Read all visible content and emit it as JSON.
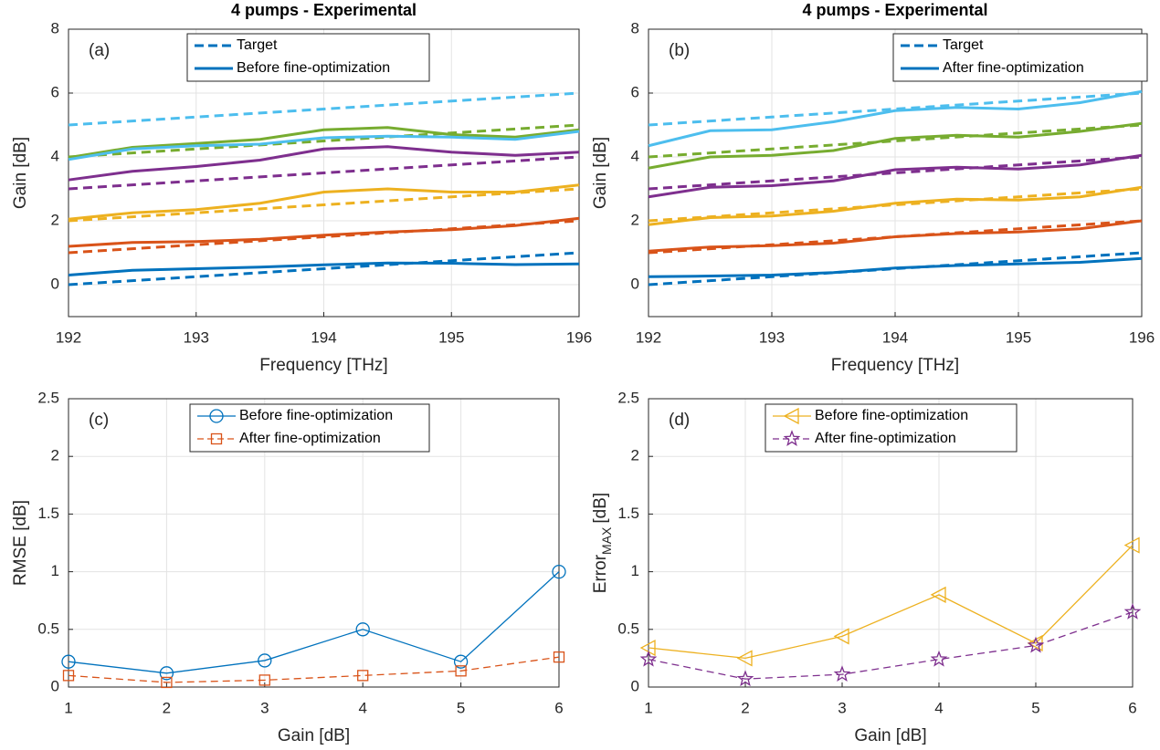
{
  "chart_data": [
    {
      "type": "line",
      "title": "4 pumps - Experimental",
      "annotation": "(a)",
      "xlabel": "Frequency [THz]",
      "ylabel": "Gain [dB]",
      "x": [
        192,
        192.5,
        193,
        193.5,
        194,
        194.5,
        195,
        195.5,
        196
      ],
      "xlim": [
        192,
        196
      ],
      "xticks": [
        192,
        193,
        194,
        195,
        196
      ],
      "ylim": [
        -1,
        8
      ],
      "yticks": [
        0,
        2,
        4,
        6,
        8
      ],
      "grid": true,
      "legend": [
        {
          "label": "Target",
          "dash": true,
          "color": "#0072BD"
        },
        {
          "label": "Before fine-optimization",
          "dash": false,
          "color": "#0072BD"
        }
      ],
      "series": [
        {
          "color": "#0072BD",
          "dash": true,
          "values": [
            0,
            0.125,
            0.25,
            0.375,
            0.5,
            0.625,
            0.75,
            0.875,
            1
          ]
        },
        {
          "color": "#D95319",
          "dash": true,
          "values": [
            1,
            1.125,
            1.25,
            1.375,
            1.5,
            1.625,
            1.75,
            1.875,
            2
          ]
        },
        {
          "color": "#EDB120",
          "dash": true,
          "values": [
            2,
            2.125,
            2.25,
            2.375,
            2.5,
            2.625,
            2.75,
            2.875,
            3
          ]
        },
        {
          "color": "#7E2F8E",
          "dash": true,
          "values": [
            3,
            3.125,
            3.25,
            3.375,
            3.5,
            3.625,
            3.75,
            3.875,
            4
          ]
        },
        {
          "color": "#77AC30",
          "dash": true,
          "values": [
            4,
            4.125,
            4.25,
            4.375,
            4.5,
            4.625,
            4.75,
            4.875,
            5
          ]
        },
        {
          "color": "#4DBEEE",
          "dash": true,
          "values": [
            5,
            5.125,
            5.25,
            5.375,
            5.5,
            5.625,
            5.75,
            5.875,
            6
          ]
        },
        {
          "color": "#0072BD",
          "dash": false,
          "values": [
            0.3,
            0.45,
            0.5,
            0.55,
            0.62,
            0.68,
            0.67,
            0.63,
            0.65
          ]
        },
        {
          "color": "#D95319",
          "dash": false,
          "values": [
            1.2,
            1.32,
            1.35,
            1.42,
            1.55,
            1.65,
            1.72,
            1.85,
            2.08
          ]
        },
        {
          "color": "#EDB120",
          "dash": false,
          "values": [
            2.05,
            2.25,
            2.35,
            2.55,
            2.9,
            3.0,
            2.9,
            2.9,
            3.12
          ]
        },
        {
          "color": "#7E2F8E",
          "dash": false,
          "values": [
            3.28,
            3.55,
            3.7,
            3.9,
            4.25,
            4.32,
            4.15,
            4.05,
            4.15
          ]
        },
        {
          "color": "#77AC30",
          "dash": false,
          "values": [
            3.98,
            4.3,
            4.42,
            4.55,
            4.85,
            4.92,
            4.7,
            4.62,
            4.85
          ]
        },
        {
          "color": "#4DBEEE",
          "dash": false,
          "values": [
            3.92,
            4.25,
            4.35,
            4.4,
            4.6,
            4.65,
            4.62,
            4.55,
            4.8
          ]
        }
      ]
    },
    {
      "type": "line",
      "title": "4 pumps - Experimental",
      "annotation": "(b)",
      "xlabel": "Frequency [THz]",
      "ylabel": "Gain [dB]",
      "x": [
        192,
        192.5,
        193,
        193.5,
        194,
        194.5,
        195,
        195.5,
        196
      ],
      "xlim": [
        192,
        196
      ],
      "xticks": [
        192,
        193,
        194,
        195,
        196
      ],
      "ylim": [
        -1,
        8
      ],
      "yticks": [
        0,
        2,
        4,
        6,
        8
      ],
      "grid": true,
      "legend": [
        {
          "label": "Target",
          "dash": true,
          "color": "#0072BD"
        },
        {
          "label": "After fine-optimization",
          "dash": false,
          "color": "#0072BD"
        }
      ],
      "series": [
        {
          "color": "#0072BD",
          "dash": true,
          "values": [
            0,
            0.125,
            0.25,
            0.375,
            0.5,
            0.625,
            0.75,
            0.875,
            1
          ]
        },
        {
          "color": "#D95319",
          "dash": true,
          "values": [
            1,
            1.125,
            1.25,
            1.375,
            1.5,
            1.625,
            1.75,
            1.875,
            2
          ]
        },
        {
          "color": "#EDB120",
          "dash": true,
          "values": [
            2,
            2.125,
            2.25,
            2.375,
            2.5,
            2.625,
            2.75,
            2.875,
            3
          ]
        },
        {
          "color": "#7E2F8E",
          "dash": true,
          "values": [
            3,
            3.125,
            3.25,
            3.375,
            3.5,
            3.625,
            3.75,
            3.875,
            4
          ]
        },
        {
          "color": "#77AC30",
          "dash": true,
          "values": [
            4,
            4.125,
            4.25,
            4.375,
            4.5,
            4.625,
            4.75,
            4.875,
            5
          ]
        },
        {
          "color": "#4DBEEE",
          "dash": true,
          "values": [
            5,
            5.125,
            5.25,
            5.375,
            5.5,
            5.625,
            5.75,
            5.875,
            6
          ]
        },
        {
          "color": "#0072BD",
          "dash": false,
          "values": [
            0.25,
            0.27,
            0.3,
            0.38,
            0.52,
            0.6,
            0.65,
            0.7,
            0.82
          ]
        },
        {
          "color": "#D95319",
          "dash": false,
          "values": [
            1.05,
            1.18,
            1.22,
            1.3,
            1.5,
            1.6,
            1.65,
            1.75,
            2.0
          ]
        },
        {
          "color": "#EDB120",
          "dash": false,
          "values": [
            1.88,
            2.1,
            2.15,
            2.3,
            2.55,
            2.68,
            2.65,
            2.75,
            3.05
          ]
        },
        {
          "color": "#7E2F8E",
          "dash": false,
          "values": [
            2.75,
            3.05,
            3.1,
            3.25,
            3.6,
            3.68,
            3.62,
            3.75,
            4.05
          ]
        },
        {
          "color": "#77AC30",
          "dash": false,
          "values": [
            3.65,
            4.0,
            4.05,
            4.2,
            4.58,
            4.68,
            4.62,
            4.8,
            5.05
          ]
        },
        {
          "color": "#4DBEEE",
          "dash": false,
          "values": [
            4.35,
            4.82,
            4.85,
            5.1,
            5.45,
            5.55,
            5.5,
            5.7,
            6.05
          ]
        }
      ]
    },
    {
      "type": "line",
      "annotation": "(c)",
      "xlabel": "Gain [dB]",
      "ylabel": "RMSE [dB]",
      "x": [
        1,
        2,
        3,
        4,
        5,
        6
      ],
      "xlim": [
        1,
        6
      ],
      "xticks": [
        1,
        2,
        3,
        4,
        5,
        6
      ],
      "ylim": [
        0,
        2.5
      ],
      "yticks": [
        0,
        0.5,
        1,
        1.5,
        2,
        2.5
      ],
      "grid": true,
      "series": [
        {
          "name": "Before fine-optimization",
          "color": "#0072BD",
          "dash": false,
          "marker": "circle",
          "values": [
            0.22,
            0.12,
            0.23,
            0.5,
            0.22,
            1.0
          ]
        },
        {
          "name": "After fine-optimization",
          "color": "#D95319",
          "dash": true,
          "marker": "square",
          "values": [
            0.1,
            0.04,
            0.06,
            0.1,
            0.14,
            0.26
          ]
        }
      ]
    },
    {
      "type": "line",
      "annotation": "(d)",
      "xlabel": "Gain [dB]",
      "ylabel": {
        "text": "Error",
        "sub": "MAX",
        "unit": "[dB]"
      },
      "x": [
        1,
        2,
        3,
        4,
        5,
        6
      ],
      "xlim": [
        1,
        6
      ],
      "xticks": [
        1,
        2,
        3,
        4,
        5,
        6
      ],
      "ylim": [
        0,
        2.5
      ],
      "yticks": [
        0,
        0.5,
        1,
        1.5,
        2,
        2.5
      ],
      "grid": true,
      "series": [
        {
          "name": "Before fine-optimization",
          "color": "#EDB120",
          "dash": false,
          "marker": "triangle-left",
          "values": [
            0.34,
            0.25,
            0.44,
            0.8,
            0.38,
            1.23
          ]
        },
        {
          "name": "After fine-optimization",
          "color": "#7E2F8E",
          "dash": true,
          "marker": "star",
          "values": [
            0.24,
            0.07,
            0.11,
            0.24,
            0.36,
            0.65
          ]
        }
      ]
    }
  ]
}
